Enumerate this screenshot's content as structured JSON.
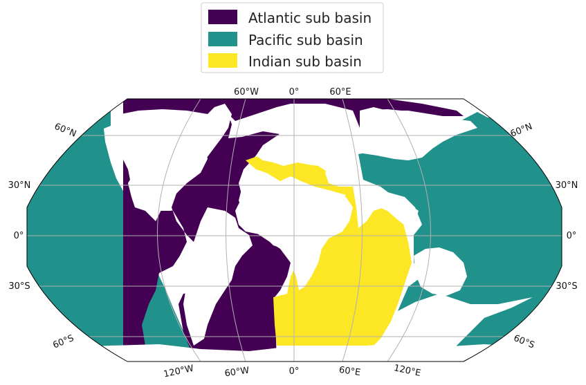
{
  "legend": {
    "items": [
      {
        "label": "Atlantic sub basin",
        "color": "#440154"
      },
      {
        "label": "Pacific sub basin",
        "color": "#21918c"
      },
      {
        "label": "Indian sub basin",
        "color": "#fde725"
      }
    ]
  },
  "map": {
    "projection": "Robinson",
    "background_color": "#ffffff",
    "outline_color": "#000000",
    "gridline_color": "#b0b0b0",
    "top_lon_labels": [
      "60°W",
      "0°",
      "60°E"
    ],
    "bottom_lon_labels": [
      "120°W",
      "60°W",
      "0°",
      "60°E",
      "120°E"
    ],
    "left_lat_labels": [
      "60°N",
      "30°N",
      "0°",
      "30°S",
      "60°S"
    ],
    "right_lat_labels": [
      "60°N",
      "30°N",
      "0°",
      "30°S",
      "60°S"
    ]
  }
}
